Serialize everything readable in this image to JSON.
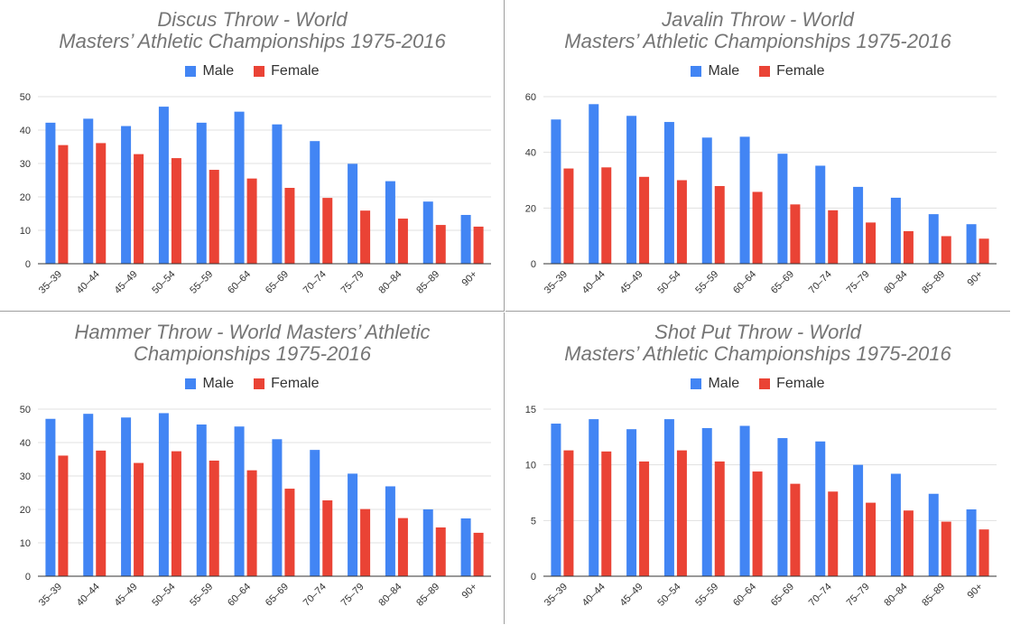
{
  "colors": {
    "male": "#4285f4",
    "female": "#ea4335",
    "grid": "#e0e0e0",
    "axis": "#333333",
    "title": "#757575"
  },
  "chart_data": [
    {
      "type": "bar",
      "title_lines": [
        "Discus Throw - World",
        "Masters’ Athletic Championships 1975-2016"
      ],
      "categories": [
        "35–39",
        "40–44",
        "45–49",
        "50–54",
        "55–59",
        "60–64",
        "65–69",
        "70–74",
        "75–79",
        "80–84",
        "85–89",
        "90+"
      ],
      "series": [
        {
          "name": "Male",
          "values": [
            42.2,
            43.4,
            41.2,
            47.0,
            42.2,
            45.5,
            41.7,
            36.7,
            29.9,
            24.7,
            18.6,
            14.6
          ]
        },
        {
          "name": "Female",
          "values": [
            35.5,
            36.1,
            32.8,
            31.6,
            28.1,
            25.5,
            22.7,
            19.7,
            15.9,
            13.5,
            11.6,
            11.1
          ]
        }
      ],
      "ylim": [
        0,
        50
      ],
      "yticks": [
        "0",
        "10",
        "20",
        "30",
        "40",
        "50"
      ],
      "legend": "top-center",
      "grid": true
    },
    {
      "type": "bar",
      "title_lines": [
        "Javalin Throw - World",
        "Masters’ Athletic Championships 1975-2016"
      ],
      "categories": [
        "35–39",
        "40–44",
        "45–49",
        "50–54",
        "55–59",
        "60–64",
        "65–69",
        "70–74",
        "75–79",
        "80–84",
        "85–89",
        "90+"
      ],
      "series": [
        {
          "name": "Male",
          "values": [
            51.8,
            57.3,
            53.1,
            50.9,
            45.3,
            45.6,
            39.5,
            35.2,
            27.6,
            23.7,
            17.8,
            14.2
          ]
        },
        {
          "name": "Female",
          "values": [
            34.2,
            34.6,
            31.2,
            30.0,
            27.9,
            25.8,
            21.3,
            19.2,
            14.8,
            11.7,
            9.9,
            9.0
          ]
        }
      ],
      "ylim": [
        0,
        60
      ],
      "yticks": [
        "0",
        "20",
        "40",
        "60"
      ],
      "legend": "top-center",
      "grid": true
    },
    {
      "type": "bar",
      "title_lines": [
        "Hammer Throw - World Masters’ Athletic",
        "Championships 1975-2016"
      ],
      "categories": [
        "35–39",
        "40–44",
        "45–49",
        "50–54",
        "55–59",
        "60–64",
        "65–69",
        "70–74",
        "75–79",
        "80–84",
        "85–89",
        "90+"
      ],
      "series": [
        {
          "name": "Male",
          "values": [
            47.1,
            48.6,
            47.5,
            48.8,
            45.4,
            44.8,
            41.0,
            37.8,
            30.7,
            26.9,
            20.0,
            17.3
          ]
        },
        {
          "name": "Female",
          "values": [
            36.1,
            37.6,
            33.9,
            37.4,
            34.6,
            31.7,
            26.2,
            22.7,
            20.1,
            17.4,
            14.6,
            13.0
          ]
        }
      ],
      "ylim": [
        0,
        50
      ],
      "yticks": [
        "0",
        "10",
        "20",
        "30",
        "40",
        "50"
      ],
      "legend": "top-center",
      "grid": true
    },
    {
      "type": "bar",
      "title_lines": [
        "Shot Put Throw - World",
        "Masters’ Athletic Championships 1975-2016"
      ],
      "categories": [
        "35–39",
        "40–44",
        "45–49",
        "50–54",
        "55–59",
        "60–64",
        "65–69",
        "70–74",
        "75–79",
        "80–84",
        "85–89",
        "90+"
      ],
      "series": [
        {
          "name": "Male",
          "values": [
            13.7,
            14.1,
            13.2,
            14.1,
            13.3,
            13.5,
            12.4,
            12.1,
            10.0,
            9.2,
            7.4,
            6.0
          ]
        },
        {
          "name": "Female",
          "values": [
            11.3,
            11.2,
            10.3,
            11.3,
            10.3,
            9.4,
            8.3,
            7.6,
            6.6,
            5.9,
            4.9,
            4.2
          ]
        }
      ],
      "ylim": [
        0,
        15
      ],
      "yticks": [
        "0",
        "5",
        "10",
        "15"
      ],
      "legend": "top-center",
      "grid": true
    }
  ]
}
